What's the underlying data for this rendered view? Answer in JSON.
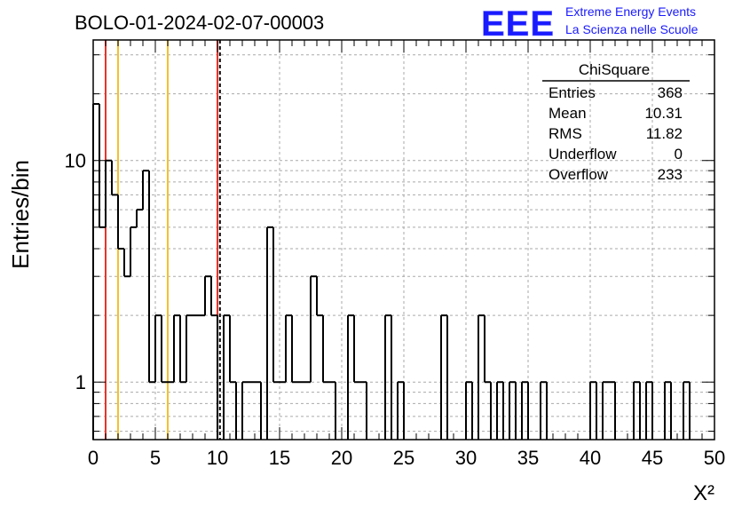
{
  "chart_data": {
    "type": "bar",
    "title": "BOLO-01-2024-02-07-00003",
    "xlabel": "X²",
    "ylabel": "Entries/bin",
    "xlim": [
      0,
      50
    ],
    "ylim": [
      0.55,
      35
    ],
    "y_scale": "log",
    "grid": true,
    "bin_width": 0.5,
    "x_ticks": [
      "0",
      "5",
      "10",
      "15",
      "20",
      "25",
      "30",
      "35",
      "40",
      "45",
      "50"
    ],
    "y_tick_labels": [
      "1",
      "10"
    ],
    "bins": [
      {
        "x": 0.0,
        "y": 18
      },
      {
        "x": 0.5,
        "y": 5
      },
      {
        "x": 1.0,
        "y": 10
      },
      {
        "x": 1.5,
        "y": 7
      },
      {
        "x": 2.0,
        "y": 4
      },
      {
        "x": 2.5,
        "y": 3
      },
      {
        "x": 3.0,
        "y": 5
      },
      {
        "x": 3.5,
        "y": 6
      },
      {
        "x": 4.0,
        "y": 9
      },
      {
        "x": 4.5,
        "y": 1
      },
      {
        "x": 5.0,
        "y": 2
      },
      {
        "x": 5.5,
        "y": 1
      },
      {
        "x": 6.0,
        "y": 1
      },
      {
        "x": 6.5,
        "y": 2
      },
      {
        "x": 7.0,
        "y": 1
      },
      {
        "x": 7.5,
        "y": 2
      },
      {
        "x": 8.0,
        "y": 2
      },
      {
        "x": 8.5,
        "y": 2
      },
      {
        "x": 9.0,
        "y": 3
      },
      {
        "x": 9.5,
        "y": 2
      },
      {
        "x": 10.0,
        "y": 0
      },
      {
        "x": 10.5,
        "y": 2
      },
      {
        "x": 11.0,
        "y": 1
      },
      {
        "x": 11.5,
        "y": 0
      },
      {
        "x": 12.0,
        "y": 1
      },
      {
        "x": 12.5,
        "y": 1
      },
      {
        "x": 13.0,
        "y": 1
      },
      {
        "x": 13.5,
        "y": 0
      },
      {
        "x": 14.0,
        "y": 5
      },
      {
        "x": 14.5,
        "y": 1
      },
      {
        "x": 15.0,
        "y": 1
      },
      {
        "x": 15.5,
        "y": 2
      },
      {
        "x": 16.0,
        "y": 1
      },
      {
        "x": 16.5,
        "y": 1
      },
      {
        "x": 17.0,
        "y": 1
      },
      {
        "x": 17.5,
        "y": 3
      },
      {
        "x": 18.0,
        "y": 2
      },
      {
        "x": 18.5,
        "y": 1
      },
      {
        "x": 19.0,
        "y": 1
      },
      {
        "x": 19.5,
        "y": 0
      },
      {
        "x": 20.0,
        "y": 0
      },
      {
        "x": 20.5,
        "y": 2
      },
      {
        "x": 21.0,
        "y": 1
      },
      {
        "x": 21.5,
        "y": 1
      },
      {
        "x": 22.0,
        "y": 0
      },
      {
        "x": 22.5,
        "y": 0
      },
      {
        "x": 23.0,
        "y": 0
      },
      {
        "x": 23.5,
        "y": 2
      },
      {
        "x": 24.0,
        "y": 0
      },
      {
        "x": 24.5,
        "y": 1
      },
      {
        "x": 25.0,
        "y": 0
      },
      {
        "x": 25.5,
        "y": 0
      },
      {
        "x": 26.0,
        "y": 0
      },
      {
        "x": 26.5,
        "y": 0
      },
      {
        "x": 27.0,
        "y": 0
      },
      {
        "x": 27.5,
        "y": 0
      },
      {
        "x": 28.0,
        "y": 2
      },
      {
        "x": 28.5,
        "y": 0
      },
      {
        "x": 29.0,
        "y": 0
      },
      {
        "x": 29.5,
        "y": 0
      },
      {
        "x": 30.0,
        "y": 1
      },
      {
        "x": 30.5,
        "y": 0
      },
      {
        "x": 31.0,
        "y": 2
      },
      {
        "x": 31.5,
        "y": 1
      },
      {
        "x": 32.0,
        "y": 0
      },
      {
        "x": 32.5,
        "y": 1
      },
      {
        "x": 33.0,
        "y": 0
      },
      {
        "x": 33.5,
        "y": 1
      },
      {
        "x": 34.0,
        "y": 0
      },
      {
        "x": 34.5,
        "y": 1
      },
      {
        "x": 35.0,
        "y": 0
      },
      {
        "x": 35.5,
        "y": 0
      },
      {
        "x": 36.0,
        "y": 1
      },
      {
        "x": 36.5,
        "y": 0
      },
      {
        "x": 37.0,
        "y": 0
      },
      {
        "x": 37.5,
        "y": 0
      },
      {
        "x": 38.0,
        "y": 0
      },
      {
        "x": 38.5,
        "y": 0
      },
      {
        "x": 39.0,
        "y": 0
      },
      {
        "x": 39.5,
        "y": 0
      },
      {
        "x": 40.0,
        "y": 1
      },
      {
        "x": 40.5,
        "y": 0
      },
      {
        "x": 41.0,
        "y": 1
      },
      {
        "x": 41.5,
        "y": 1
      },
      {
        "x": 42.0,
        "y": 0
      },
      {
        "x": 42.5,
        "y": 0
      },
      {
        "x": 43.0,
        "y": 0
      },
      {
        "x": 43.5,
        "y": 1
      },
      {
        "x": 44.0,
        "y": 0
      },
      {
        "x": 44.5,
        "y": 1
      },
      {
        "x": 45.0,
        "y": 0
      },
      {
        "x": 45.5,
        "y": 0
      },
      {
        "x": 46.0,
        "y": 1
      },
      {
        "x": 46.5,
        "y": 0
      },
      {
        "x": 47.0,
        "y": 0
      },
      {
        "x": 47.5,
        "y": 1
      },
      {
        "x": 48.0,
        "y": 0
      },
      {
        "x": 48.5,
        "y": 0
      },
      {
        "x": 49.0,
        "y": 0
      },
      {
        "x": 49.5,
        "y": 0
      }
    ],
    "vertical_markers": [
      {
        "x": 1.0,
        "color": "#e8332a",
        "style": "solid"
      },
      {
        "x": 2.0,
        "color": "#f2c12e",
        "style": "solid"
      },
      {
        "x": 6.0,
        "color": "#f2c12e",
        "style": "solid"
      },
      {
        "x": 10.0,
        "color": "#e8332a",
        "style": "solid"
      },
      {
        "x": 10.2,
        "color": "#000000",
        "style": "dashed"
      }
    ],
    "line_color": "#000000",
    "grid_color": "#aaaaaa"
  },
  "stats_box": {
    "title": "ChiSquare",
    "rows": [
      {
        "label": "Entries",
        "value": "368"
      },
      {
        "label": "Mean",
        "value": "10.31"
      },
      {
        "label": "RMS",
        "value": "11.82"
      },
      {
        "label": "Underflow",
        "value": "0"
      },
      {
        "label": "Overflow",
        "value": "233"
      }
    ]
  },
  "logo": {
    "mark": "EEE",
    "line1": "Extreme Energy Events",
    "line2": "La Scienza nelle Scuole",
    "color": "#1a1aff"
  }
}
